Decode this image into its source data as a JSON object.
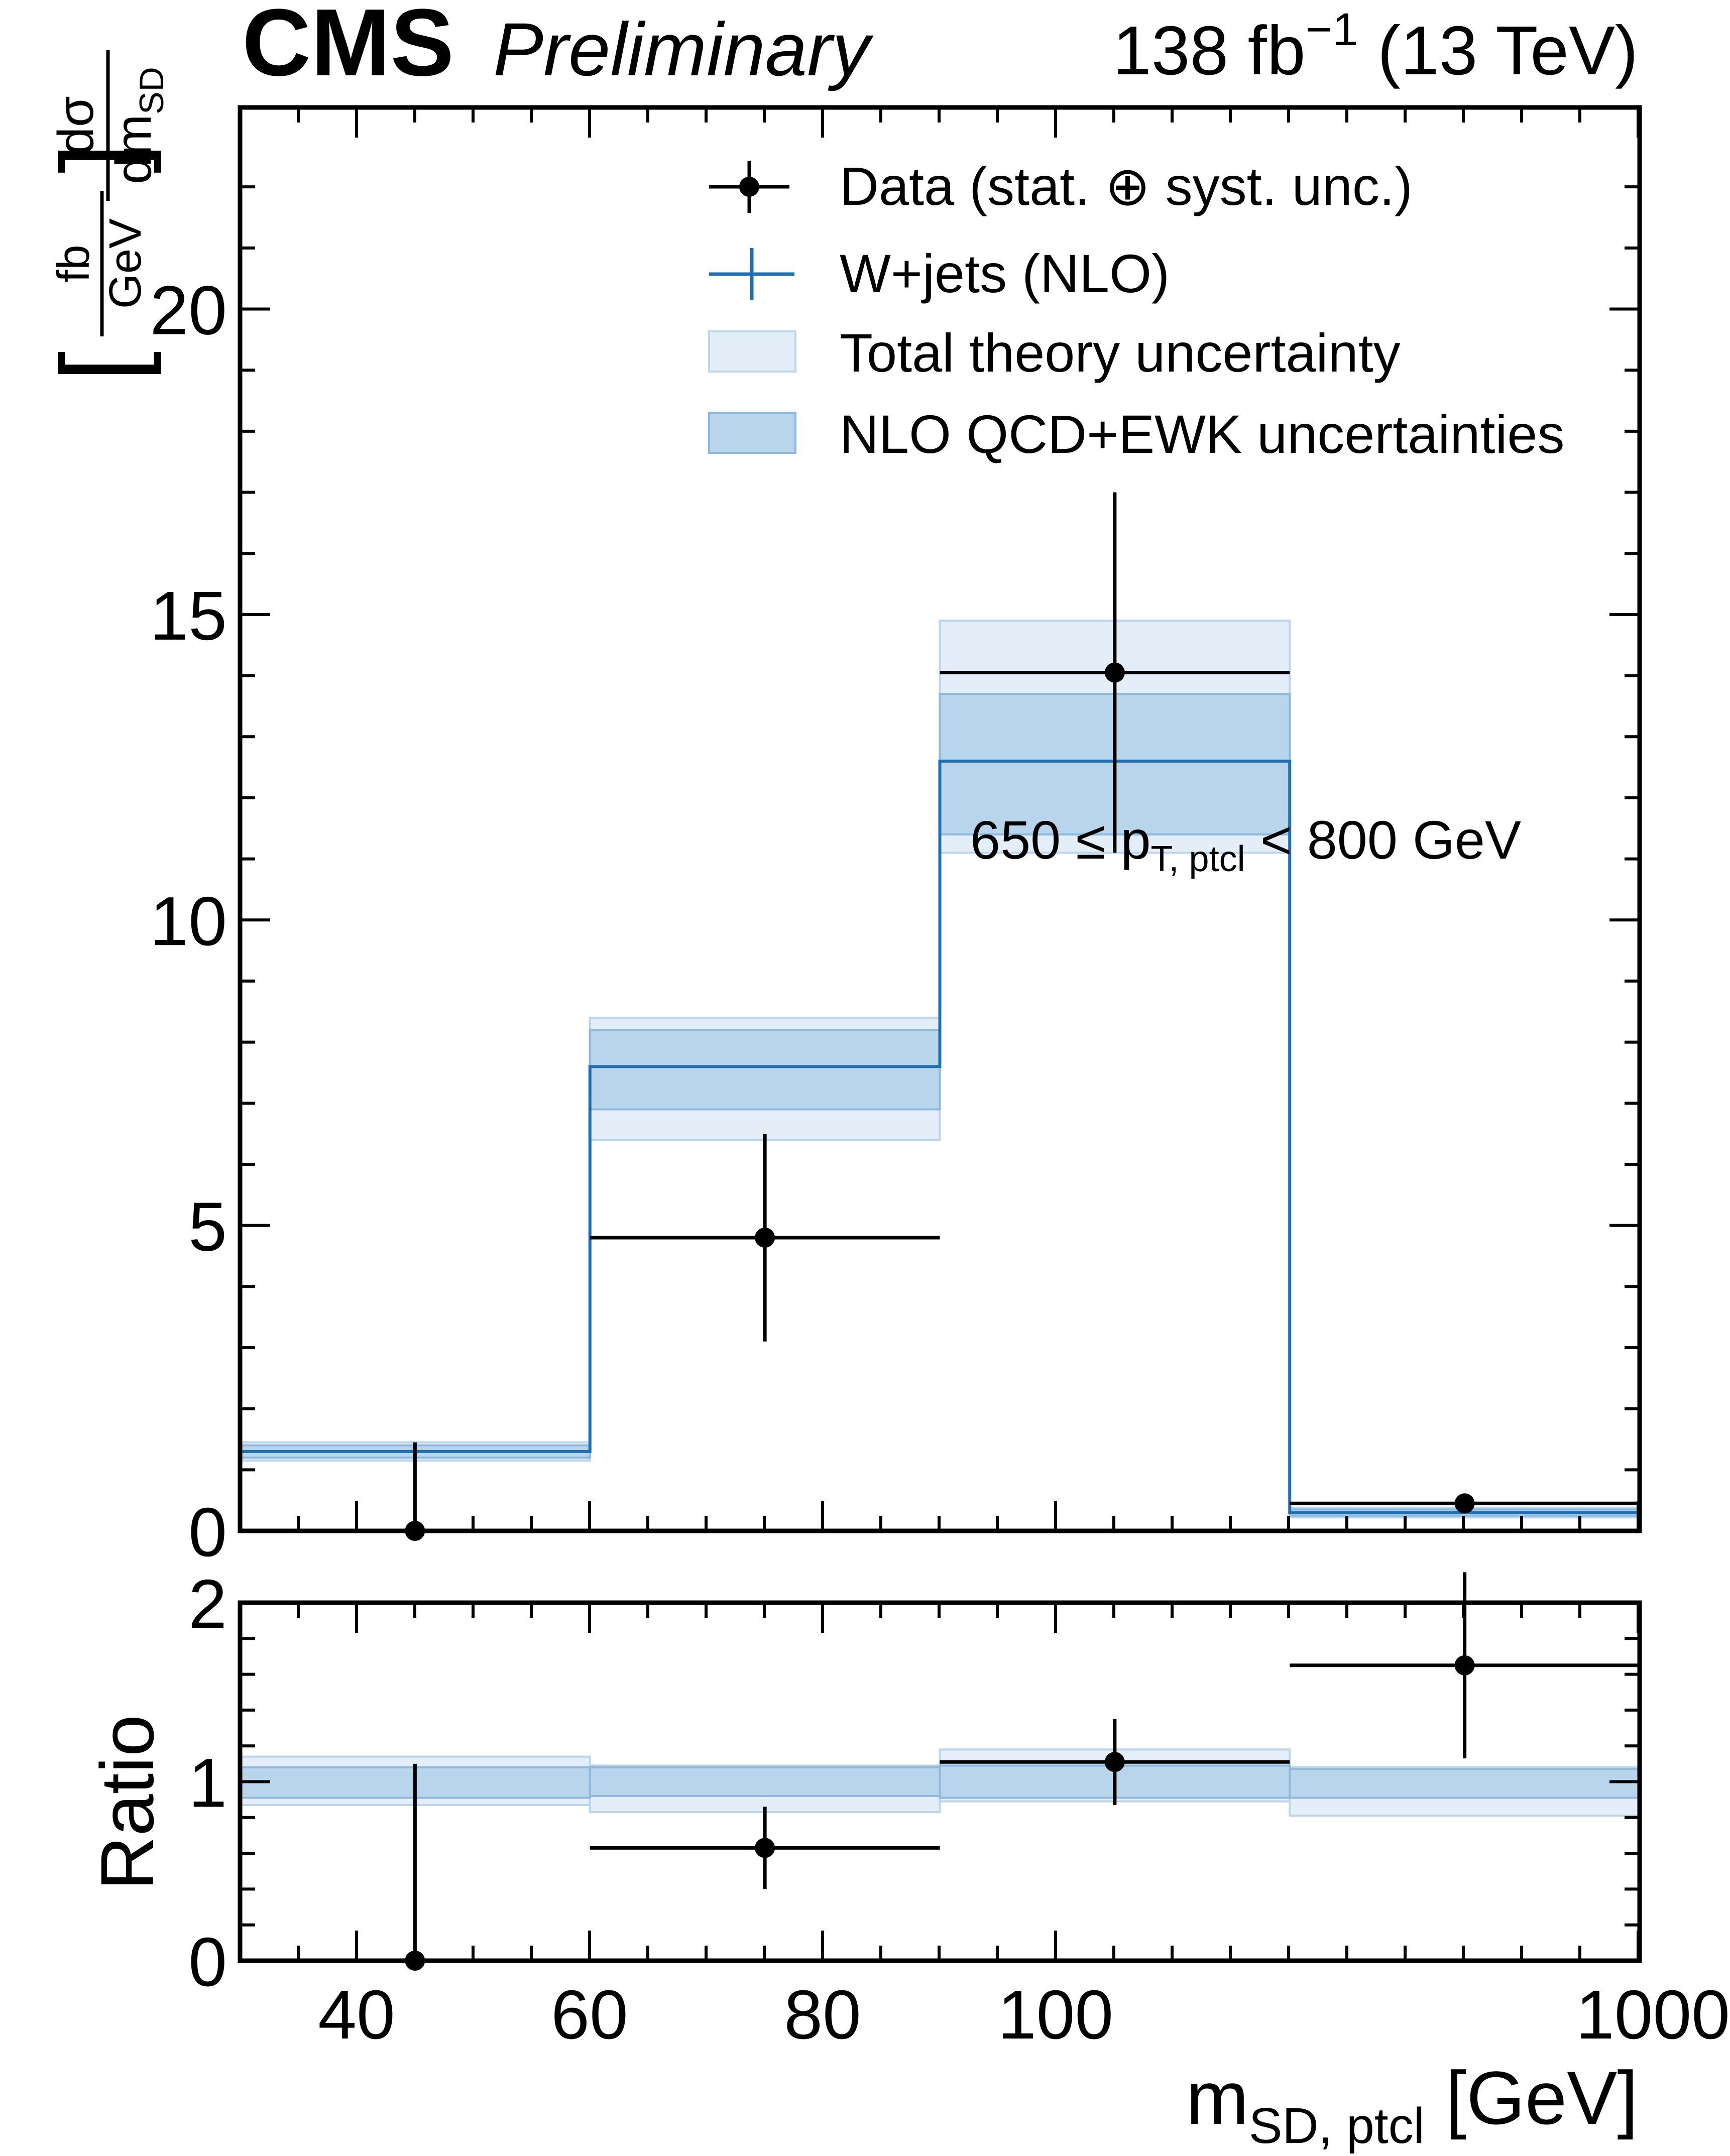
{
  "header": {
    "brand": "CMS",
    "status": "Preliminary",
    "lumi_value": "138 fb",
    "lumi_exp": "−1",
    "energy": "(13 TeV)"
  },
  "axes": {
    "ylabel_num": "dσ",
    "ylabel_den_main": "dm",
    "ylabel_den_sub": "SD",
    "ylabel_unit_num": "fb",
    "ylabel_unit_den": "GeV",
    "ratio_label": "Ratio",
    "xlabel_main": "m",
    "xlabel_sub": "SD, ptcl",
    "xlabel_unit": "[GeV]"
  },
  "annotation": {
    "text_pre": "650 ≤ p",
    "text_sub": "T, ptcl",
    "text_post": " < 800 GeV"
  },
  "colors": {
    "mc_line": "#1f6fb2",
    "band_total": "#e3eef8",
    "band_total_edge": "#bcd5ec",
    "band_nlo": "#b9d5ec",
    "band_nlo_edge": "#8fb8dd",
    "data": "#000000"
  },
  "chart_data": {
    "type": "histogram",
    "bin_edges": [
      30,
      70,
      80,
      90,
      1000
    ],
    "x_tick_labels": [
      "40",
      "60",
      "80",
      "100",
      "1000"
    ],
    "legend": {
      "placement": "top-right",
      "entries": [
        "Data (stat. ⊕ syst. unc.)",
        "W+jets (NLO)",
        "Total theory uncertainty",
        "NLO QCD+EWK uncertainties"
      ]
    },
    "main": {
      "ylim": [
        0,
        23.3
      ],
      "y_ticks": [
        0,
        5,
        10,
        15,
        20
      ],
      "mc": {
        "values": [
          1.3,
          7.6,
          12.6,
          0.3
        ],
        "nlo_band": [
          [
            1.2,
            1.4
          ],
          [
            6.9,
            8.2
          ],
          [
            11.4,
            13.7
          ],
          [
            0.25,
            0.35
          ]
        ],
        "total_band": [
          [
            1.15,
            1.45
          ],
          [
            6.4,
            8.4
          ],
          [
            11.1,
            14.9
          ],
          [
            0.22,
            0.38
          ]
        ]
      },
      "data": {
        "x": [
          50,
          75,
          85,
          545
        ],
        "y": [
          0.0,
          4.8,
          14.05,
          0.45
        ],
        "yerr_low": [
          0.0,
          1.7,
          2.95,
          0.1
        ],
        "yerr_high": [
          1.45,
          1.7,
          2.95,
          0.1
        ]
      }
    },
    "ratio": {
      "ylim": [
        0,
        2
      ],
      "y_ticks": [
        0,
        1,
        2
      ],
      "nlo_band": [
        [
          0.91,
          1.08
        ],
        [
          0.92,
          1.08
        ],
        [
          0.91,
          1.09
        ],
        [
          0.91,
          1.07
        ]
      ],
      "total_band": [
        [
          0.87,
          1.14
        ],
        [
          0.83,
          1.09
        ],
        [
          0.89,
          1.18
        ],
        [
          0.81,
          1.08
        ]
      ],
      "data": {
        "x": [
          50,
          75,
          85,
          545
        ],
        "y": [
          0.0,
          0.63,
          1.11,
          1.65
        ],
        "yerr_low": [
          0.0,
          0.23,
          0.24,
          0.52
        ],
        "yerr_high": [
          1.1,
          0.23,
          0.24,
          0.52
        ]
      }
    }
  }
}
